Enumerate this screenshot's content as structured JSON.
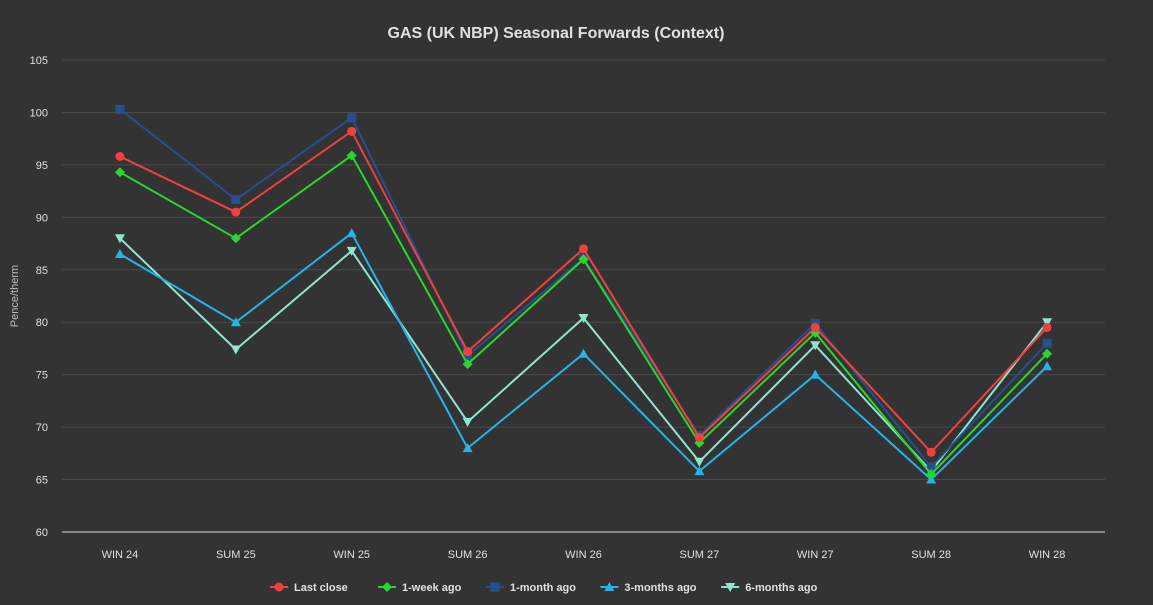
{
  "chart_data": {
    "type": "line",
    "title": "GAS (UK NBP) Seasonal Forwards (Context)",
    "xlabel": "",
    "ylabel": "Pence/therm",
    "ylim": [
      60,
      105
    ],
    "yticks": [
      60,
      65,
      70,
      75,
      80,
      85,
      90,
      95,
      100,
      105
    ],
    "grid": true,
    "legend_position": "bottom",
    "categories": [
      "WIN 24",
      "SUM 25",
      "WIN 25",
      "SUM 26",
      "WIN 26",
      "SUM 27",
      "WIN 27",
      "SUM 28",
      "WIN 28"
    ],
    "series": [
      {
        "name": "Last close",
        "color": "#f0413f",
        "marker": "circle",
        "values": [
          95.8,
          90.5,
          98.2,
          77.2,
          87.0,
          69.0,
          79.5,
          67.6,
          79.5
        ]
      },
      {
        "name": "1-week ago",
        "color": "#2bd62b",
        "marker": "diamond",
        "values": [
          94.3,
          88.0,
          95.9,
          76.0,
          86.0,
          68.5,
          79.0,
          65.5,
          77.0
        ]
      },
      {
        "name": "1-month ago",
        "color": "#25508f",
        "marker": "square",
        "values": [
          100.3,
          91.7,
          99.5,
          76.8,
          86.1,
          69.2,
          79.9,
          66.2,
          78.0
        ]
      },
      {
        "name": "3-months ago",
        "color": "#26b3e6",
        "marker": "triangle",
        "values": [
          86.5,
          80.0,
          88.5,
          68.0,
          77.0,
          65.8,
          75.0,
          65.0,
          75.8
        ]
      },
      {
        "name": "6-months ago",
        "color": "#8ee6d0",
        "marker": "triangle-down",
        "values": [
          88.0,
          77.4,
          86.8,
          70.5,
          80.4,
          66.7,
          77.8,
          65.8,
          80.0
        ]
      }
    ]
  }
}
